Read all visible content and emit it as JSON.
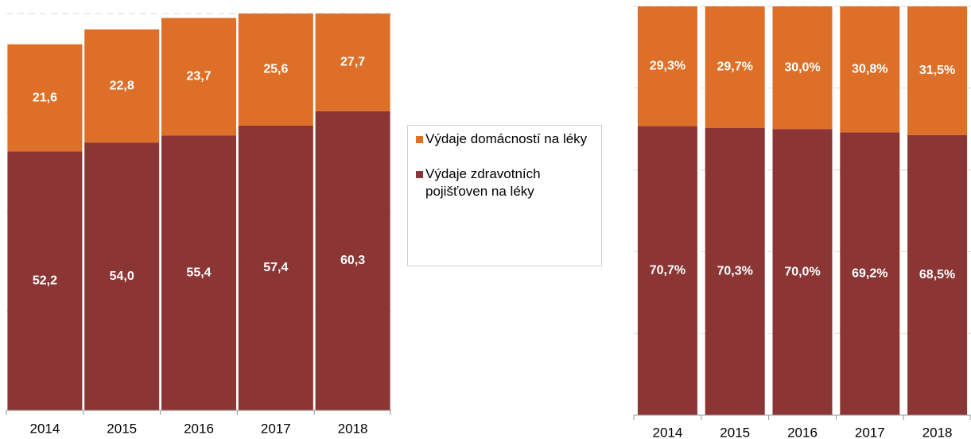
{
  "chart_data": [
    {
      "type": "stacked-bar",
      "categories": [
        "2014",
        "2015",
        "2016",
        "2017",
        "2018"
      ],
      "series": [
        {
          "name": "Výdaje zdravotních pojišťoven na léky",
          "color": "#8b3535",
          "values": [
            52.2,
            54.0,
            55.4,
            57.4,
            60.3
          ],
          "value_labels": [
            "52,2",
            "54,0",
            "55,4",
            "57,4",
            "60,3"
          ]
        },
        {
          "name": "Výdaje domácností na léky",
          "color": "#dd6f28",
          "values": [
            21.6,
            22.8,
            23.7,
            25.6,
            27.7
          ],
          "value_labels": [
            "21,6",
            "22,8",
            "23,7",
            "25,6",
            "27,7"
          ]
        }
      ],
      "ylim": [
        0,
        80
      ],
      "yticks": [
        0,
        20,
        40,
        60,
        80
      ],
      "grid": true
    },
    {
      "type": "stacked-bar",
      "categories": [
        "2014",
        "2015",
        "2016",
        "2017",
        "2018"
      ],
      "series": [
        {
          "color": "#8b3535",
          "values": [
            70.7,
            70.3,
            70.0,
            69.2,
            68.5
          ],
          "value_labels": [
            "70,7%",
            "70,3%",
            "70,0%",
            "69,2%",
            "68,5%"
          ]
        },
        {
          "color": "#dd6f28",
          "values": [
            29.3,
            29.7,
            30.0,
            30.8,
            31.5
          ],
          "value_labels": [
            "29,3%",
            "29,7%",
            "30,0%",
            "30,8%",
            "31,5%"
          ]
        }
      ],
      "ylim": [
        0,
        100
      ],
      "yticks": [
        0,
        20,
        40,
        60,
        80,
        100
      ],
      "grid": true
    }
  ]
}
